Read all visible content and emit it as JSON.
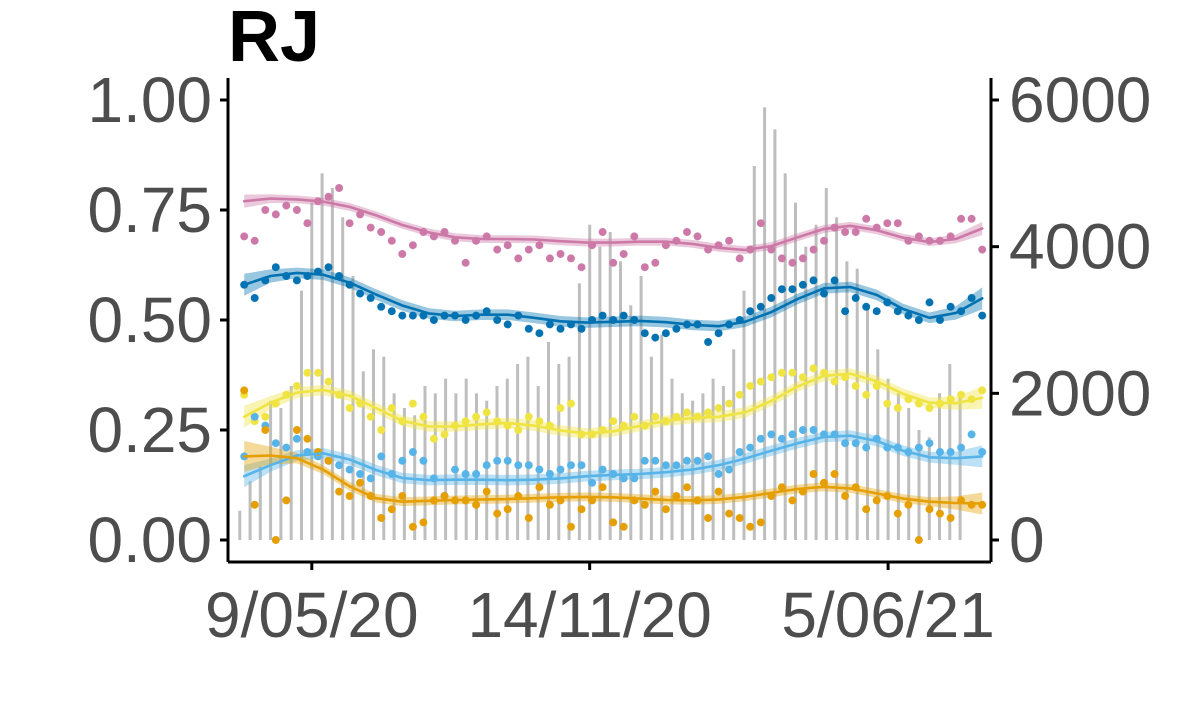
{
  "chart_data": {
    "type": "line",
    "title": "RJ",
    "xlabel": "",
    "ylabel": "",
    "y2label": "",
    "x_range": [
      "2020-03-13",
      "2021-08-14"
    ],
    "x_ticks": [
      {
        "date": "2020-05-09",
        "label": "9/05/20"
      },
      {
        "date": "2020-11-14",
        "label": "14/11/20"
      },
      {
        "date": "2021-06-05",
        "label": "5/06/21"
      }
    ],
    "ylim": [
      -0.05,
      1.05
    ],
    "y_ticks": [
      {
        "value": 0.0,
        "label": "0.00"
      },
      {
        "value": 0.25,
        "label": "0.25"
      },
      {
        "value": 0.5,
        "label": "0.50"
      },
      {
        "value": 0.75,
        "label": "0.75"
      },
      {
        "value": 1.0,
        "label": "1.00"
      }
    ],
    "y2lim": [
      -300,
      6300
    ],
    "y2_ticks": [
      {
        "value": 0,
        "label": "0"
      },
      {
        "value": 2000,
        "label": "2000"
      },
      {
        "value": 4000,
        "label": "4000"
      },
      {
        "value": 6000,
        "label": "6000"
      }
    ],
    "grid": false,
    "legend": "none",
    "bar_series": {
      "axis": "right",
      "color": "#bebebe",
      "start": "2020-03-21",
      "step_days": 7,
      "values": [
        400,
        800,
        1000,
        1900,
        1800,
        2100,
        3400,
        4600,
        5000,
        4800,
        4400,
        3600,
        2300,
        2600,
        2500,
        2000,
        1800,
        1700,
        2100,
        2000,
        2200,
        2000,
        2200,
        2000,
        1900,
        2100,
        2200,
        2400,
        2500,
        2100,
        2700,
        2400,
        2500,
        3500,
        4300,
        4000,
        4200,
        3800,
        3200,
        3600,
        2500,
        2800,
        2200,
        2000,
        1900,
        2000,
        2200,
        2100,
        2600,
        3400,
        5100,
        5900,
        5600,
        5000,
        4600,
        4000,
        4300,
        4800,
        4400,
        3800,
        3700,
        3200,
        2600,
        2200,
        2000,
        1800,
        1500,
        1400,
        2000,
        2400,
        2000
      ]
    },
    "series": [
      {
        "color": "#cc79a7",
        "points": [
          0.69,
          0.68,
          0.75,
          0.74,
          0.76,
          0.75,
          0.72,
          0.77,
          0.78,
          0.8,
          0.72,
          0.74,
          0.71,
          0.7,
          0.68,
          0.65,
          0.67,
          0.7,
          0.69,
          0.7,
          0.68,
          0.63,
          0.68,
          0.69,
          0.66,
          0.67,
          0.64,
          0.66,
          0.67,
          0.64,
          0.65,
          0.64,
          0.62,
          0.67,
          0.7,
          0.63,
          0.65,
          0.69,
          0.62,
          0.63,
          0.67,
          0.68,
          0.7,
          0.69,
          0.66,
          0.67,
          0.68,
          0.64,
          0.66,
          0.72,
          0.66,
          0.64,
          0.63,
          0.64,
          0.66,
          0.68,
          0.71,
          0.7,
          0.7,
          0.73,
          0.71,
          0.72,
          0.72,
          0.68,
          0.69,
          0.68,
          0.68,
          0.69,
          0.73,
          0.73,
          0.66
        ],
        "fit": [
          0.77,
          0.776,
          0.774,
          0.769,
          0.757,
          0.738,
          0.716,
          0.699,
          0.688,
          0.684,
          0.684,
          0.683,
          0.679,
          0.676,
          0.676,
          0.678,
          0.678,
          0.673,
          0.664,
          0.659,
          0.668,
          0.688,
          0.707,
          0.714,
          0.704,
          0.687,
          0.677,
          0.684,
          0.708
        ],
        "band": [
          0.015,
          0.01,
          0.009,
          0.009,
          0.009,
          0.009,
          0.009,
          0.009,
          0.009,
          0.009,
          0.009,
          0.009,
          0.009,
          0.009,
          0.009,
          0.009,
          0.009,
          0.009,
          0.009,
          0.009,
          0.009,
          0.009,
          0.009,
          0.009,
          0.009,
          0.009,
          0.009,
          0.01,
          0.015
        ]
      },
      {
        "color": "#0072b2",
        "points": [
          0.58,
          0.55,
          0.59,
          0.62,
          0.6,
          0.59,
          0.6,
          0.61,
          0.62,
          0.6,
          0.58,
          0.56,
          0.55,
          0.53,
          0.52,
          0.51,
          0.51,
          0.51,
          0.5,
          0.51,
          0.51,
          0.5,
          0.51,
          0.52,
          0.5,
          0.49,
          0.51,
          0.48,
          0.47,
          0.49,
          0.48,
          0.49,
          0.48,
          0.5,
          0.51,
          0.5,
          0.51,
          0.5,
          0.47,
          0.46,
          0.47,
          0.48,
          0.49,
          0.49,
          0.45,
          0.47,
          0.49,
          0.5,
          0.52,
          0.53,
          0.55,
          0.57,
          0.57,
          0.58,
          0.59,
          0.56,
          0.59,
          0.52,
          0.55,
          0.53,
          0.52,
          0.54,
          0.52,
          0.51,
          0.5,
          0.54,
          0.5,
          0.53,
          0.52,
          0.55,
          0.51
        ],
        "fit": [
          0.58,
          0.6,
          0.607,
          0.603,
          0.585,
          0.558,
          0.533,
          0.515,
          0.509,
          0.512,
          0.512,
          0.505,
          0.497,
          0.494,
          0.496,
          0.498,
          0.495,
          0.489,
          0.486,
          0.496,
          0.518,
          0.548,
          0.572,
          0.575,
          0.557,
          0.525,
          0.505,
          0.516,
          0.549
        ],
        "band": [
          0.025,
          0.015,
          0.012,
          0.012,
          0.012,
          0.012,
          0.012,
          0.012,
          0.012,
          0.012,
          0.012,
          0.012,
          0.012,
          0.012,
          0.012,
          0.012,
          0.012,
          0.012,
          0.012,
          0.012,
          0.012,
          0.012,
          0.012,
          0.012,
          0.012,
          0.012,
          0.012,
          0.015,
          0.025
        ]
      },
      {
        "color": "#f0e442",
        "points": [
          0.33,
          0.27,
          0.28,
          0.31,
          0.33,
          0.35,
          0.38,
          0.38,
          0.36,
          0.33,
          0.3,
          0.31,
          0.28,
          0.25,
          0.3,
          0.27,
          0.31,
          0.28,
          0.23,
          0.24,
          0.26,
          0.27,
          0.28,
          0.29,
          0.27,
          0.26,
          0.25,
          0.28,
          0.27,
          0.26,
          0.3,
          0.31,
          0.24,
          0.24,
          0.25,
          0.27,
          0.26,
          0.28,
          0.26,
          0.28,
          0.27,
          0.28,
          0.29,
          0.28,
          0.29,
          0.3,
          0.31,
          0.33,
          0.35,
          0.36,
          0.37,
          0.38,
          0.38,
          0.37,
          0.39,
          0.38,
          0.36,
          0.37,
          0.35,
          0.33,
          0.35,
          0.31,
          0.3,
          0.32,
          0.31,
          0.3,
          0.31,
          0.32,
          0.33,
          0.32,
          0.34
        ],
        "fit": [
          0.28,
          0.312,
          0.335,
          0.341,
          0.328,
          0.3,
          0.271,
          0.258,
          0.258,
          0.263,
          0.266,
          0.26,
          0.249,
          0.242,
          0.247,
          0.259,
          0.271,
          0.277,
          0.28,
          0.29,
          0.316,
          0.349,
          0.373,
          0.378,
          0.361,
          0.332,
          0.312,
          0.311,
          0.323
        ],
        "band": [
          0.025,
          0.015,
          0.012,
          0.012,
          0.012,
          0.012,
          0.012,
          0.012,
          0.012,
          0.012,
          0.012,
          0.012,
          0.012,
          0.012,
          0.012,
          0.012,
          0.012,
          0.012,
          0.012,
          0.012,
          0.012,
          0.012,
          0.012,
          0.012,
          0.012,
          0.012,
          0.012,
          0.015,
          0.025
        ]
      },
      {
        "color": "#56b4e9",
        "points": [
          0.19,
          0.28,
          0.26,
          0.22,
          0.21,
          0.23,
          0.2,
          0.19,
          0.18,
          0.17,
          0.16,
          0.15,
          0.14,
          0.19,
          0.15,
          0.18,
          0.2,
          0.18,
          0.14,
          0.1,
          0.16,
          0.15,
          0.15,
          0.17,
          0.18,
          0.18,
          0.17,
          0.17,
          0.16,
          0.15,
          0.16,
          0.17,
          0.17,
          0.13,
          0.16,
          0.15,
          0.14,
          0.14,
          0.18,
          0.18,
          0.17,
          0.17,
          0.18,
          0.18,
          0.19,
          0.15,
          0.16,
          0.2,
          0.21,
          0.23,
          0.24,
          0.23,
          0.24,
          0.25,
          0.25,
          0.24,
          0.24,
          0.22,
          0.22,
          0.21,
          0.23,
          0.21,
          0.21,
          0.2,
          0.21,
          0.22,
          0.2,
          0.2,
          0.21,
          0.24,
          0.2
        ],
        "fit": [
          0.145,
          0.17,
          0.192,
          0.197,
          0.183,
          0.159,
          0.141,
          0.136,
          0.137,
          0.137,
          0.136,
          0.137,
          0.14,
          0.145,
          0.148,
          0.15,
          0.154,
          0.16,
          0.17,
          0.185,
          0.203,
          0.22,
          0.234,
          0.237,
          0.225,
          0.203,
          0.188,
          0.186,
          0.19
        ],
        "band": [
          0.025,
          0.015,
          0.012,
          0.012,
          0.012,
          0.012,
          0.012,
          0.012,
          0.012,
          0.012,
          0.012,
          0.012,
          0.012,
          0.012,
          0.012,
          0.012,
          0.012,
          0.012,
          0.012,
          0.012,
          0.012,
          0.012,
          0.012,
          0.012,
          0.012,
          0.012,
          0.012,
          0.015,
          0.025
        ]
      },
      {
        "color": "#e69f00",
        "points": [
          0.34,
          0.08,
          0.25,
          0.0,
          0.09,
          0.25,
          0.23,
          0.2,
          0.18,
          0.11,
          0.1,
          0.13,
          0.1,
          0.05,
          0.07,
          0.1,
          0.03,
          0.04,
          0.09,
          0.1,
          0.09,
          0.09,
          0.08,
          0.11,
          0.06,
          0.07,
          0.1,
          0.05,
          0.12,
          0.08,
          0.09,
          0.03,
          0.07,
          0.09,
          0.12,
          0.04,
          0.03,
          0.09,
          0.08,
          0.11,
          0.07,
          0.1,
          0.12,
          0.09,
          0.05,
          0.11,
          0.06,
          0.05,
          0.03,
          0.04,
          0.1,
          0.12,
          0.09,
          0.11,
          0.15,
          0.13,
          0.15,
          0.1,
          0.12,
          0.07,
          0.09,
          0.1,
          0.06,
          0.08,
          0.0,
          0.07,
          0.06,
          0.05,
          0.09,
          0.08,
          0.08
        ],
        "fit": [
          0.19,
          0.192,
          0.186,
          0.16,
          0.122,
          0.095,
          0.087,
          0.089,
          0.091,
          0.092,
          0.093,
          0.095,
          0.097,
          0.098,
          0.097,
          0.094,
          0.091,
          0.09,
          0.092,
          0.098,
          0.107,
          0.116,
          0.121,
          0.117,
          0.106,
          0.094,
          0.087,
          0.084,
          0.083
        ],
        "band": [
          0.035,
          0.02,
          0.012,
          0.01,
          0.01,
          0.01,
          0.01,
          0.01,
          0.01,
          0.01,
          0.01,
          0.01,
          0.01,
          0.01,
          0.01,
          0.01,
          0.01,
          0.01,
          0.01,
          0.01,
          0.01,
          0.01,
          0.01,
          0.01,
          0.01,
          0.01,
          0.01,
          0.015,
          0.025
        ]
      }
    ]
  }
}
